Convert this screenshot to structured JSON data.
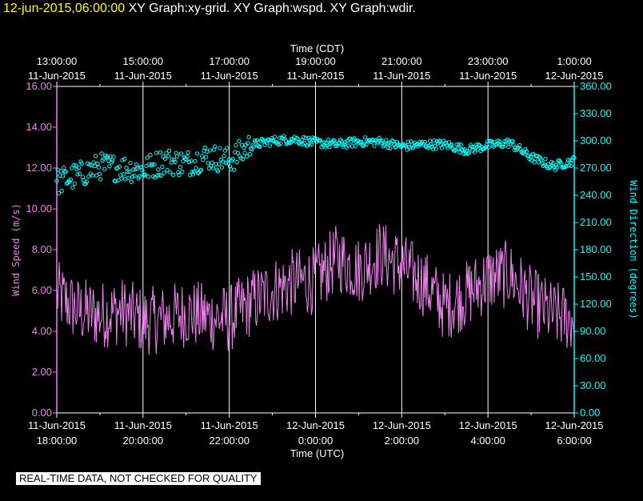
{
  "header": {
    "timestamp": "12-jun-2015,06:00:00",
    "graph_titles": "XY Graph:xy-grid.  XY Graph:wspd.  XY Graph:wdir."
  },
  "footer_note": "REAL-TIME DATA, NOT CHECKED FOR QUALITY",
  "colors": {
    "speed": "#ee82ee",
    "direction": "#00ffff",
    "grid": "#ffffff",
    "background": "#000000",
    "timestamp": "#ffff00"
  },
  "chart_data": {
    "type": "line",
    "x_top_label": "Time (CDT)",
    "x_bottom_label": "Time (UTC)",
    "xlim_utc_hours": [
      18,
      30
    ],
    "top_ticks": [
      {
        "time": "13:00:00",
        "date": "11-Jun-2015"
      },
      {
        "time": "15:00:00",
        "date": "11-Jun-2015"
      },
      {
        "time": "17:00:00",
        "date": "11-Jun-2015"
      },
      {
        "time": "19:00:00",
        "date": "11-Jun-2015"
      },
      {
        "time": "21:00:00",
        "date": "11-Jun-2015"
      },
      {
        "time": "23:00:00",
        "date": "11-Jun-2015"
      },
      {
        "time": "1:00:00",
        "date": "12-Jun-2015"
      }
    ],
    "bottom_ticks": [
      {
        "date": "11-Jun-2015",
        "time": "18:00:00"
      },
      {
        "date": "11-Jun-2015",
        "time": "20:00:00"
      },
      {
        "date": "11-Jun-2015",
        "time": "22:00:00"
      },
      {
        "date": "12-Jun-2015",
        "time": "0:00:00"
      },
      {
        "date": "12-Jun-2015",
        "time": "2:00:00"
      },
      {
        "date": "12-Jun-2015",
        "time": "4:00:00"
      },
      {
        "date": "12-Jun-2015",
        "time": "6:00:00"
      }
    ],
    "left_axis": {
      "label": "Wind Speed (m/s)",
      "ylim": [
        0,
        16
      ],
      "ticks": [
        "0.00",
        "2.00",
        "4.00",
        "6.00",
        "8.00",
        "10.00",
        "12.00",
        "14.00",
        "16.00"
      ]
    },
    "right_axis": {
      "label": "Wind Direction (degrees)",
      "ylim": [
        0,
        360
      ],
      "ticks": [
        "0.00",
        "30.00",
        "60.00",
        "90.00",
        "120.00",
        "150.00",
        "180.00",
        "210.00",
        "240.00",
        "270.00",
        "300.00",
        "330.00",
        "360.00"
      ]
    },
    "series": [
      {
        "name": "wspd",
        "style": "line",
        "x_utc_hours": [
          18.0,
          18.5,
          19.0,
          19.5,
          20.0,
          20.5,
          21.0,
          21.5,
          22.0,
          22.5,
          23.0,
          23.5,
          24.0,
          24.5,
          25.0,
          25.5,
          26.0,
          26.5,
          27.0,
          27.5,
          28.0,
          28.5,
          29.0,
          29.5,
          30.0
        ],
        "values": [
          5.8,
          5.0,
          4.8,
          5.0,
          4.5,
          4.6,
          4.9,
          4.7,
          4.6,
          5.4,
          6.0,
          6.4,
          6.5,
          7.6,
          7.0,
          7.8,
          7.2,
          6.4,
          5.2,
          5.8,
          6.6,
          6.8,
          5.5,
          4.8,
          4.6
        ]
      },
      {
        "name": "wdir",
        "style": "circles",
        "x_utc_hours": [
          18.0,
          18.5,
          19.0,
          19.5,
          20.0,
          20.5,
          21.0,
          21.5,
          22.0,
          22.5,
          23.0,
          23.5,
          24.0,
          24.5,
          25.0,
          25.5,
          26.0,
          26.5,
          27.0,
          27.5,
          28.0,
          28.5,
          29.0,
          29.5,
          30.0
        ],
        "values": [
          255,
          262,
          272,
          270,
          268,
          278,
          275,
          283,
          278,
          295,
          300,
          302,
          298,
          296,
          299,
          299,
          294,
          296,
          296,
          290,
          295,
          298,
          282,
          272,
          278
        ]
      }
    ]
  }
}
